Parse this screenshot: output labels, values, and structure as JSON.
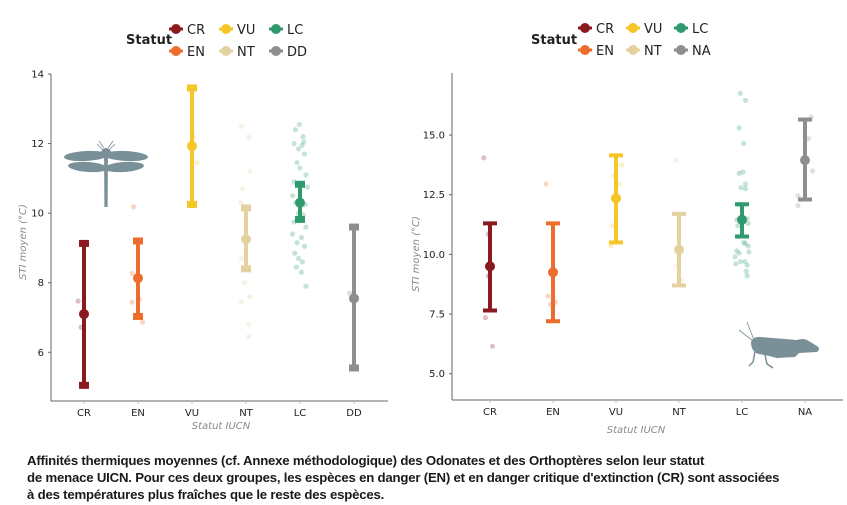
{
  "colors": {
    "CR": "#8b1a1f",
    "EN": "#ec6d2c",
    "VU": "#f6c528",
    "NT": "#e4d1a0",
    "LC": "#2f9a6e",
    "DD": "#8e8e8e",
    "NA": "#8e8e8e",
    "silhouette": "#7a9099",
    "axis": "#666666"
  },
  "chart_data": [
    {
      "id": "odonates",
      "type": "scatter",
      "subtype": "pointrange-with-jitter",
      "group_icon": "dragonfly-icon",
      "title": "",
      "xlabel": "Statut IUCN",
      "ylabel": "STI moyen (°C)",
      "ylim": [
        4.6,
        14.0
      ],
      "yticks": [
        6,
        8,
        10,
        12,
        14
      ],
      "ytick_labels": [
        "6",
        "8",
        "10",
        "12",
        "14"
      ],
      "categories": [
        "CR",
        "EN",
        "VU",
        "NT",
        "LC",
        "DD"
      ],
      "grid": false,
      "legend": {
        "title": "Statut",
        "position": "top-center",
        "rows": [
          [
            "CR",
            "VU",
            "LC"
          ],
          [
            "EN",
            "NT",
            "DD"
          ]
        ]
      },
      "series": [
        {
          "name": "CR",
          "mean": 7.1,
          "low": 5.05,
          "high": 9.13,
          "points": [
            {
              "dx": -0.2,
              "y": 7.47
            },
            {
              "dx": -0.1,
              "y": 6.72
            }
          ]
        },
        {
          "name": "EN",
          "mean": 8.13,
          "low": 7.03,
          "high": 9.2,
          "points": [
            {
              "dx": -0.2,
              "y": 8.27
            },
            {
              "dx": -0.2,
              "y": 7.44
            },
            {
              "dx": 0.05,
              "y": 7.52
            },
            {
              "dx": 0.15,
              "y": 6.86
            },
            {
              "dx": -0.15,
              "y": 10.18
            }
          ]
        },
        {
          "name": "VU",
          "mean": 11.93,
          "low": 10.25,
          "high": 13.6,
          "points": [
            {
              "dx": 0.05,
              "y": 12.2
            },
            {
              "dx": 0.17,
              "y": 11.45
            }
          ]
        },
        {
          "name": "NT",
          "mean": 9.25,
          "low": 8.4,
          "high": 10.15,
          "points": [
            {
              "dx": -0.15,
              "y": 12.5
            },
            {
              "dx": 0.1,
              "y": 12.18
            },
            {
              "dx": 0.13,
              "y": 11.2
            },
            {
              "dx": -0.12,
              "y": 10.7
            },
            {
              "dx": -0.18,
              "y": 10.3
            },
            {
              "dx": -0.15,
              "y": 8.7
            },
            {
              "dx": -0.05,
              "y": 8.0
            },
            {
              "dx": 0.13,
              "y": 7.6
            },
            {
              "dx": -0.15,
              "y": 7.45
            },
            {
              "dx": 0.1,
              "y": 6.8
            },
            {
              "dx": 0.09,
              "y": 6.45
            }
          ]
        },
        {
          "name": "LC",
          "mean": 10.3,
          "low": 9.82,
          "high": 10.83,
          "points": [
            {
              "dx": -0.02,
              "y": 12.55
            },
            {
              "dx": -0.15,
              "y": 12.4
            },
            {
              "dx": 0.1,
              "y": 12.2
            },
            {
              "dx": -0.2,
              "y": 12.0
            },
            {
              "dx": 0.13,
              "y": 12.05
            },
            {
              "dx": 0.07,
              "y": 11.95
            },
            {
              "dx": -0.05,
              "y": 11.85
            },
            {
              "dx": 0.15,
              "y": 11.7
            },
            {
              "dx": -0.1,
              "y": 11.45
            },
            {
              "dx": 0.0,
              "y": 11.3
            },
            {
              "dx": 0.2,
              "y": 11.1
            },
            {
              "dx": -0.2,
              "y": 10.9
            },
            {
              "dx": 0.25,
              "y": 10.75
            },
            {
              "dx": -0.25,
              "y": 10.5
            },
            {
              "dx": -0.15,
              "y": 10.3
            },
            {
              "dx": 0.18,
              "y": 10.25
            },
            {
              "dx": -0.05,
              "y": 10.0
            },
            {
              "dx": 0.1,
              "y": 9.95
            },
            {
              "dx": -0.2,
              "y": 9.75
            },
            {
              "dx": 0.2,
              "y": 9.6
            },
            {
              "dx": -0.25,
              "y": 9.4
            },
            {
              "dx": 0.05,
              "y": 9.3
            },
            {
              "dx": -0.1,
              "y": 9.15
            },
            {
              "dx": 0.15,
              "y": 9.05
            },
            {
              "dx": -0.18,
              "y": 8.85
            },
            {
              "dx": -0.05,
              "y": 8.7
            },
            {
              "dx": 0.08,
              "y": 8.6
            },
            {
              "dx": -0.12,
              "y": 8.45
            },
            {
              "dx": 0.05,
              "y": 8.3
            },
            {
              "dx": 0.2,
              "y": 7.9
            }
          ]
        },
        {
          "name": "DD",
          "mean": 7.55,
          "low": 5.55,
          "high": 9.6,
          "points": [
            {
              "dx": -0.15,
              "y": 7.7
            },
            {
              "dx": -0.08,
              "y": 7.5
            }
          ]
        }
      ]
    },
    {
      "id": "orthopteres",
      "type": "scatter",
      "subtype": "pointrange-with-jitter",
      "group_icon": "grasshopper-icon",
      "title": "",
      "xlabel": "Statut IUCN",
      "ylabel": "STI moyen (°C)",
      "ylim": [
        3.9,
        17.6
      ],
      "yticks": [
        5.0,
        7.5,
        10.0,
        12.5,
        15.0
      ],
      "ytick_labels": [
        "5.0",
        "7.5",
        "10.0",
        "12.5",
        "15.0"
      ],
      "categories": [
        "CR",
        "EN",
        "VU",
        "NT",
        "LC",
        "NA"
      ],
      "grid": false,
      "legend": {
        "title": "Statut",
        "position": "top-center",
        "rows": [
          [
            "CR",
            "VU",
            "LC"
          ],
          [
            "EN",
            "NT",
            "NA"
          ]
        ]
      },
      "series": [
        {
          "name": "CR",
          "mean": 9.5,
          "low": 7.65,
          "high": 11.3,
          "points": [
            {
              "dx": -0.18,
              "y": 14.05
            },
            {
              "dx": -0.05,
              "y": 10.85
            },
            {
              "dx": -0.05,
              "y": 9.1
            },
            {
              "dx": -0.13,
              "y": 7.35
            },
            {
              "dx": 0.07,
              "y": 6.15
            }
          ]
        },
        {
          "name": "EN",
          "mean": 9.25,
          "low": 7.2,
          "high": 11.3,
          "points": [
            {
              "dx": -0.2,
              "y": 12.95
            },
            {
              "dx": -0.15,
              "y": 8.25
            },
            {
              "dx": -0.07,
              "y": 7.9
            },
            {
              "dx": 0.07,
              "y": 8.0
            }
          ]
        },
        {
          "name": "VU",
          "mean": 12.35,
          "low": 10.5,
          "high": 14.15,
          "points": [
            {
              "dx": 0.16,
              "y": 13.75
            },
            {
              "dx": -0.05,
              "y": 13.3
            },
            {
              "dx": 0.08,
              "y": 12.95
            },
            {
              "dx": -0.1,
              "y": 11.2
            },
            {
              "dx": -0.15,
              "y": 10.35
            }
          ]
        },
        {
          "name": "NT",
          "mean": 10.2,
          "low": 8.7,
          "high": 11.7,
          "points": [
            {
              "dx": -0.08,
              "y": 13.95
            },
            {
              "dx": -0.08,
              "y": 9.5
            },
            {
              "dx": 0.08,
              "y": 8.9
            }
          ]
        },
        {
          "name": "LC",
          "mean": 11.45,
          "low": 10.75,
          "high": 12.1,
          "points": [
            {
              "dx": -0.05,
              "y": 16.75
            },
            {
              "dx": 0.1,
              "y": 16.45
            },
            {
              "dx": -0.08,
              "y": 15.3
            },
            {
              "dx": 0.05,
              "y": 14.65
            },
            {
              "dx": -0.08,
              "y": 13.4
            },
            {
              "dx": 0.03,
              "y": 13.45
            },
            {
              "dx": 0.1,
              "y": 12.95
            },
            {
              "dx": -0.03,
              "y": 12.8
            },
            {
              "dx": 0.1,
              "y": 12.75
            },
            {
              "dx": -0.1,
              "y": 12.1
            },
            {
              "dx": 0.15,
              "y": 11.5
            },
            {
              "dx": -0.15,
              "y": 11.45
            },
            {
              "dx": -0.12,
              "y": 11.2
            },
            {
              "dx": 0.18,
              "y": 11.3
            },
            {
              "dx": -0.12,
              "y": 10.75
            },
            {
              "dx": 0.05,
              "y": 10.5
            },
            {
              "dx": 0.1,
              "y": 10.45
            },
            {
              "dx": -0.15,
              "y": 10.15
            },
            {
              "dx": -0.08,
              "y": 10.05
            },
            {
              "dx": 0.18,
              "y": 10.35
            },
            {
              "dx": 0.2,
              "y": 10.1
            },
            {
              "dx": -0.2,
              "y": 9.9
            },
            {
              "dx": 0.08,
              "y": 9.7
            },
            {
              "dx": -0.18,
              "y": 9.6
            },
            {
              "dx": 0.15,
              "y": 9.55
            },
            {
              "dx": 0.12,
              "y": 9.3
            },
            {
              "dx": 0.15,
              "y": 9.1
            },
            {
              "dx": -0.05,
              "y": 9.7
            }
          ]
        },
        {
          "name": "NA",
          "mean": 13.95,
          "low": 12.3,
          "high": 15.65,
          "points": [
            {
              "dx": 0.18,
              "y": 15.75
            },
            {
              "dx": 0.1,
              "y": 14.85
            },
            {
              "dx": 0.22,
              "y": 13.5
            },
            {
              "dx": -0.2,
              "y": 12.45
            },
            {
              "dx": -0.2,
              "y": 12.05
            }
          ]
        }
      ]
    }
  ],
  "caption": {
    "lines": [
      "Affinités thermiques moyennes (cf. Annexe méthodologique) des Odonates et des Orthoptères selon leur statut",
      "de menace UICN. Pour ces deux groupes, les espèces en danger (EN) et en danger critique d'extinction (CR) sont associées",
      "à des températures plus fraîches que le reste des espèces."
    ]
  }
}
